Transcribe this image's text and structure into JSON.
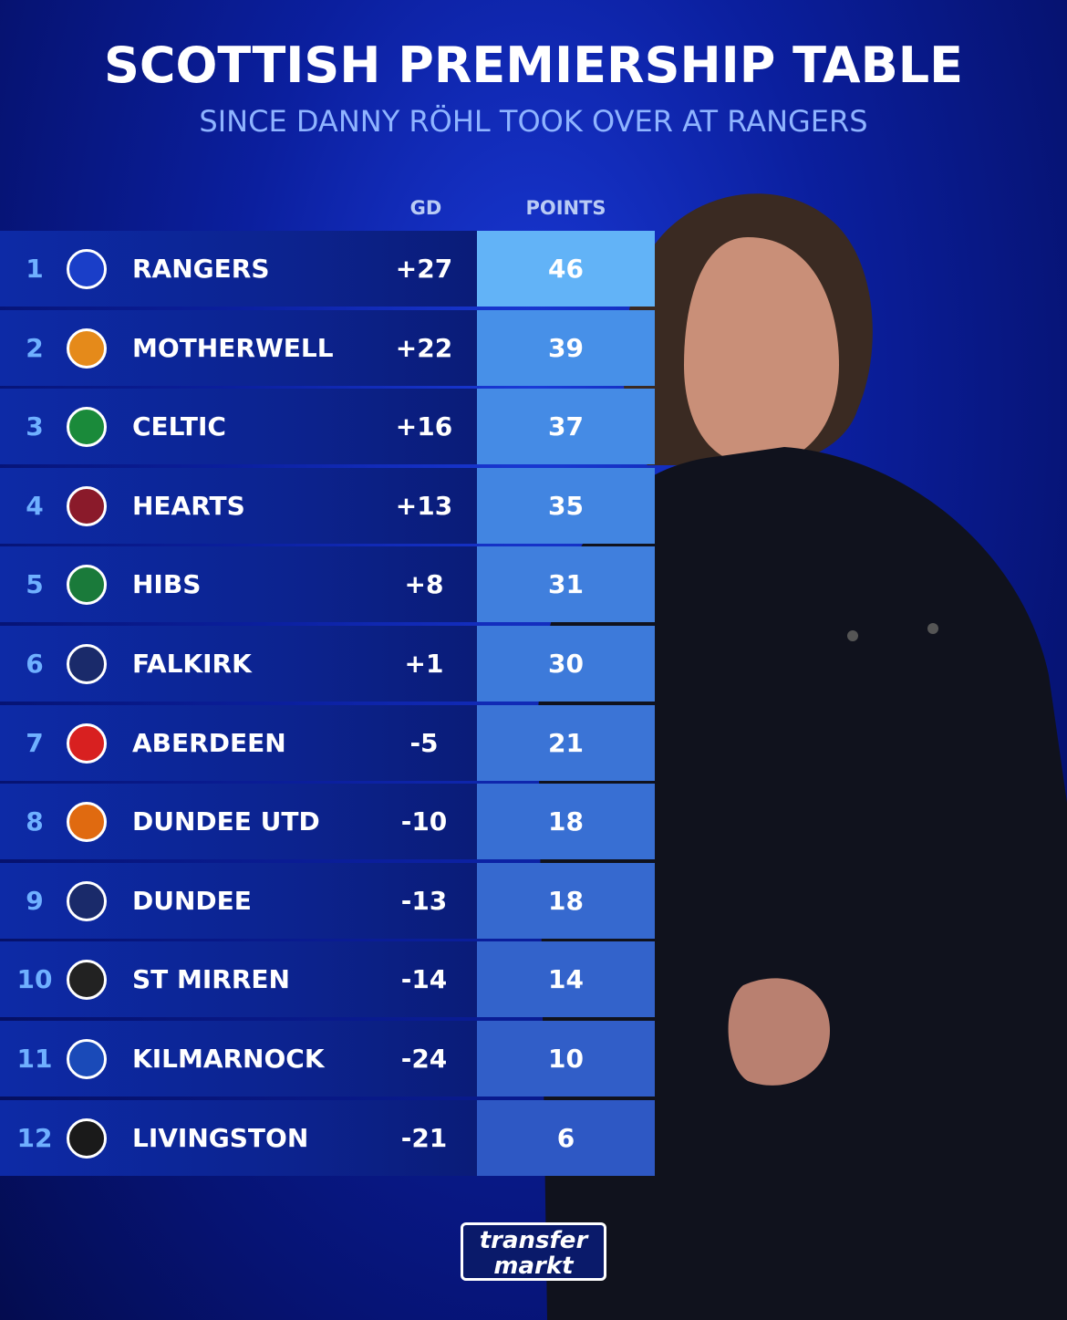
{
  "header": {
    "title": "SCOTTISH PREMIERSHIP TABLE",
    "subtitle": "SINCE DANNY RÖHL TOOK OVER AT RANGERS"
  },
  "table": {
    "columns": [
      "GD",
      "POINTS"
    ],
    "rows": [
      {
        "rank": 1,
        "team": "RANGERS",
        "gd": "+27",
        "points": 46
      },
      {
        "rank": 2,
        "team": "MOTHERWELL",
        "gd": "+22",
        "points": 39
      },
      {
        "rank": 3,
        "team": "CELTIC",
        "gd": "+16",
        "points": 37
      },
      {
        "rank": 4,
        "team": "HEARTS",
        "gd": "+13",
        "points": 35
      },
      {
        "rank": 5,
        "team": "HIBS",
        "gd": "+8",
        "points": 31
      },
      {
        "rank": 6,
        "team": "FALKIRK",
        "gd": "+1",
        "points": 30
      },
      {
        "rank": 7,
        "team": "ABERDEEN",
        "gd": "-5",
        "points": 21
      },
      {
        "rank": 8,
        "team": "DUNDEE UTD",
        "gd": "-10",
        "points": 18
      },
      {
        "rank": 9,
        "team": "DUNDEE",
        "gd": "-13",
        "points": 18
      },
      {
        "rank": 10,
        "team": "ST MIRREN",
        "gd": "-14",
        "points": 14
      },
      {
        "rank": 11,
        "team": "KILMARNOCK",
        "gd": "-24",
        "points": 10
      },
      {
        "rank": 12,
        "team": "LIVINGSTON",
        "gd": "-21",
        "points": 6
      }
    ]
  },
  "logo": {
    "line1": "transfer",
    "line2": "markt"
  }
}
